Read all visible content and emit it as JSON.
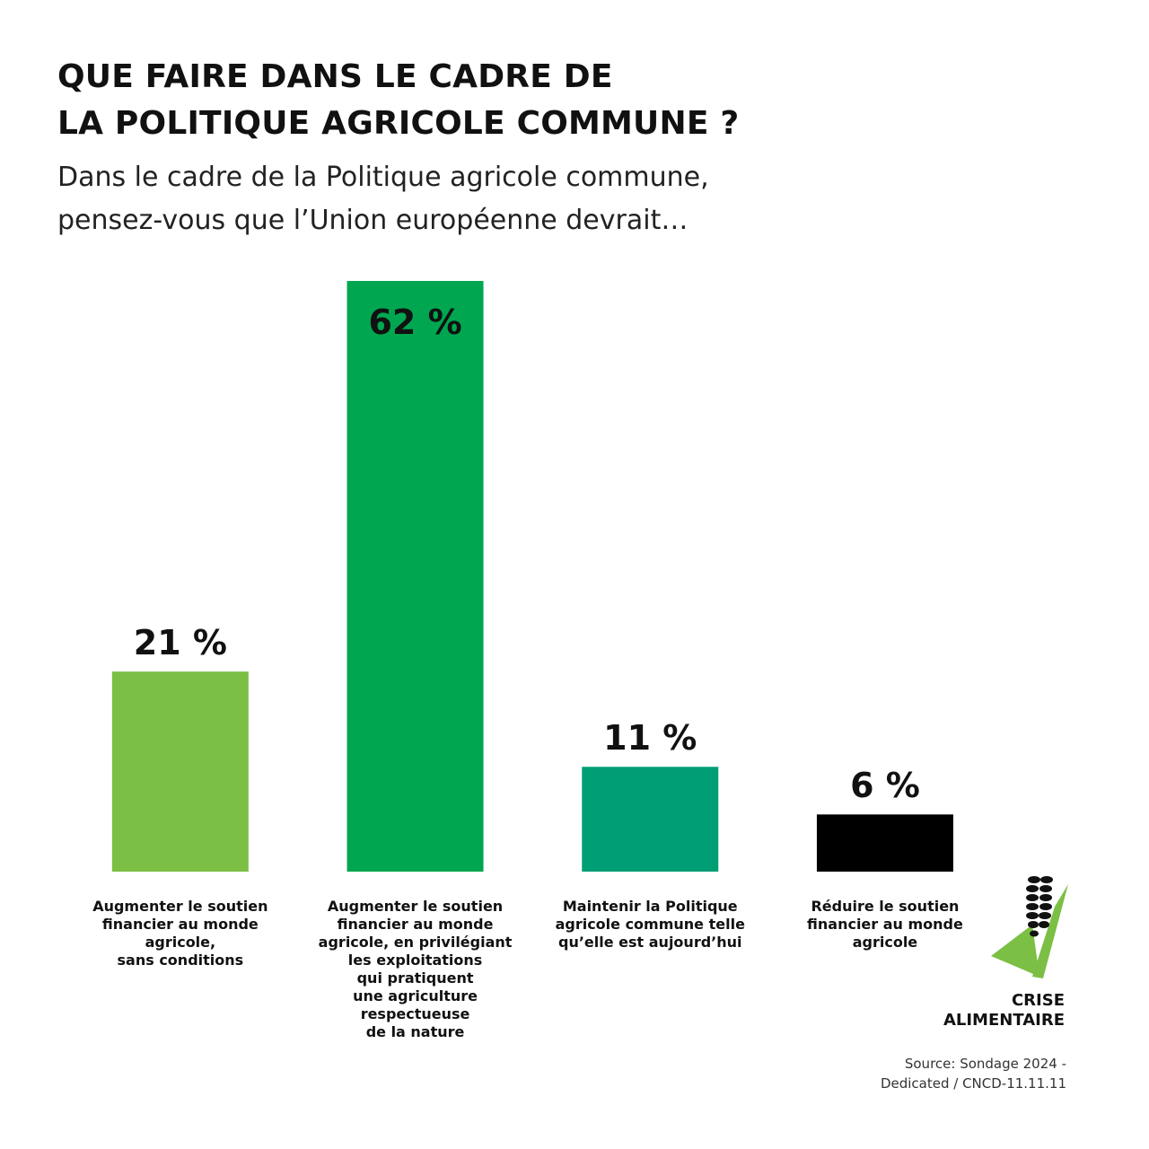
{
  "chart_data": {
    "type": "bar",
    "title": "QUE FAIRE DANS LE CADRE DE\nLA POLITIQUE AGRICOLE COMMUNE ?",
    "subtitle": "Dans le cadre de la Politique agricole commune,\npensez-vous que l’Union européenne devrait…",
    "categories": [
      "Augmenter le soutien\nfinancier au monde\nagricole,\nsans conditions",
      "Augmenter le soutien\nfinancier au monde\nagricole, en privilégiant\nles exploitations\nqui pratiquent\nune agriculture\nrespectueuse\nde la nature",
      "Maintenir la Politique\nagricole commune telle\nqu’elle est aujourd’hui",
      "Réduire le soutien\nfinancier au monde\nagricole"
    ],
    "values": [
      21,
      62,
      11,
      6
    ],
    "value_labels": [
      "21 %",
      "62 %",
      "11 %",
      "6 %"
    ],
    "colors": [
      "#7bbf44",
      "#00a650",
      "#009e74",
      "#000000"
    ],
    "logo_text": "CRISE\nALIMENTAIRE",
    "source": "Source: Sondage 2024 -\nDedicated /  CNCD-11.11.11"
  }
}
